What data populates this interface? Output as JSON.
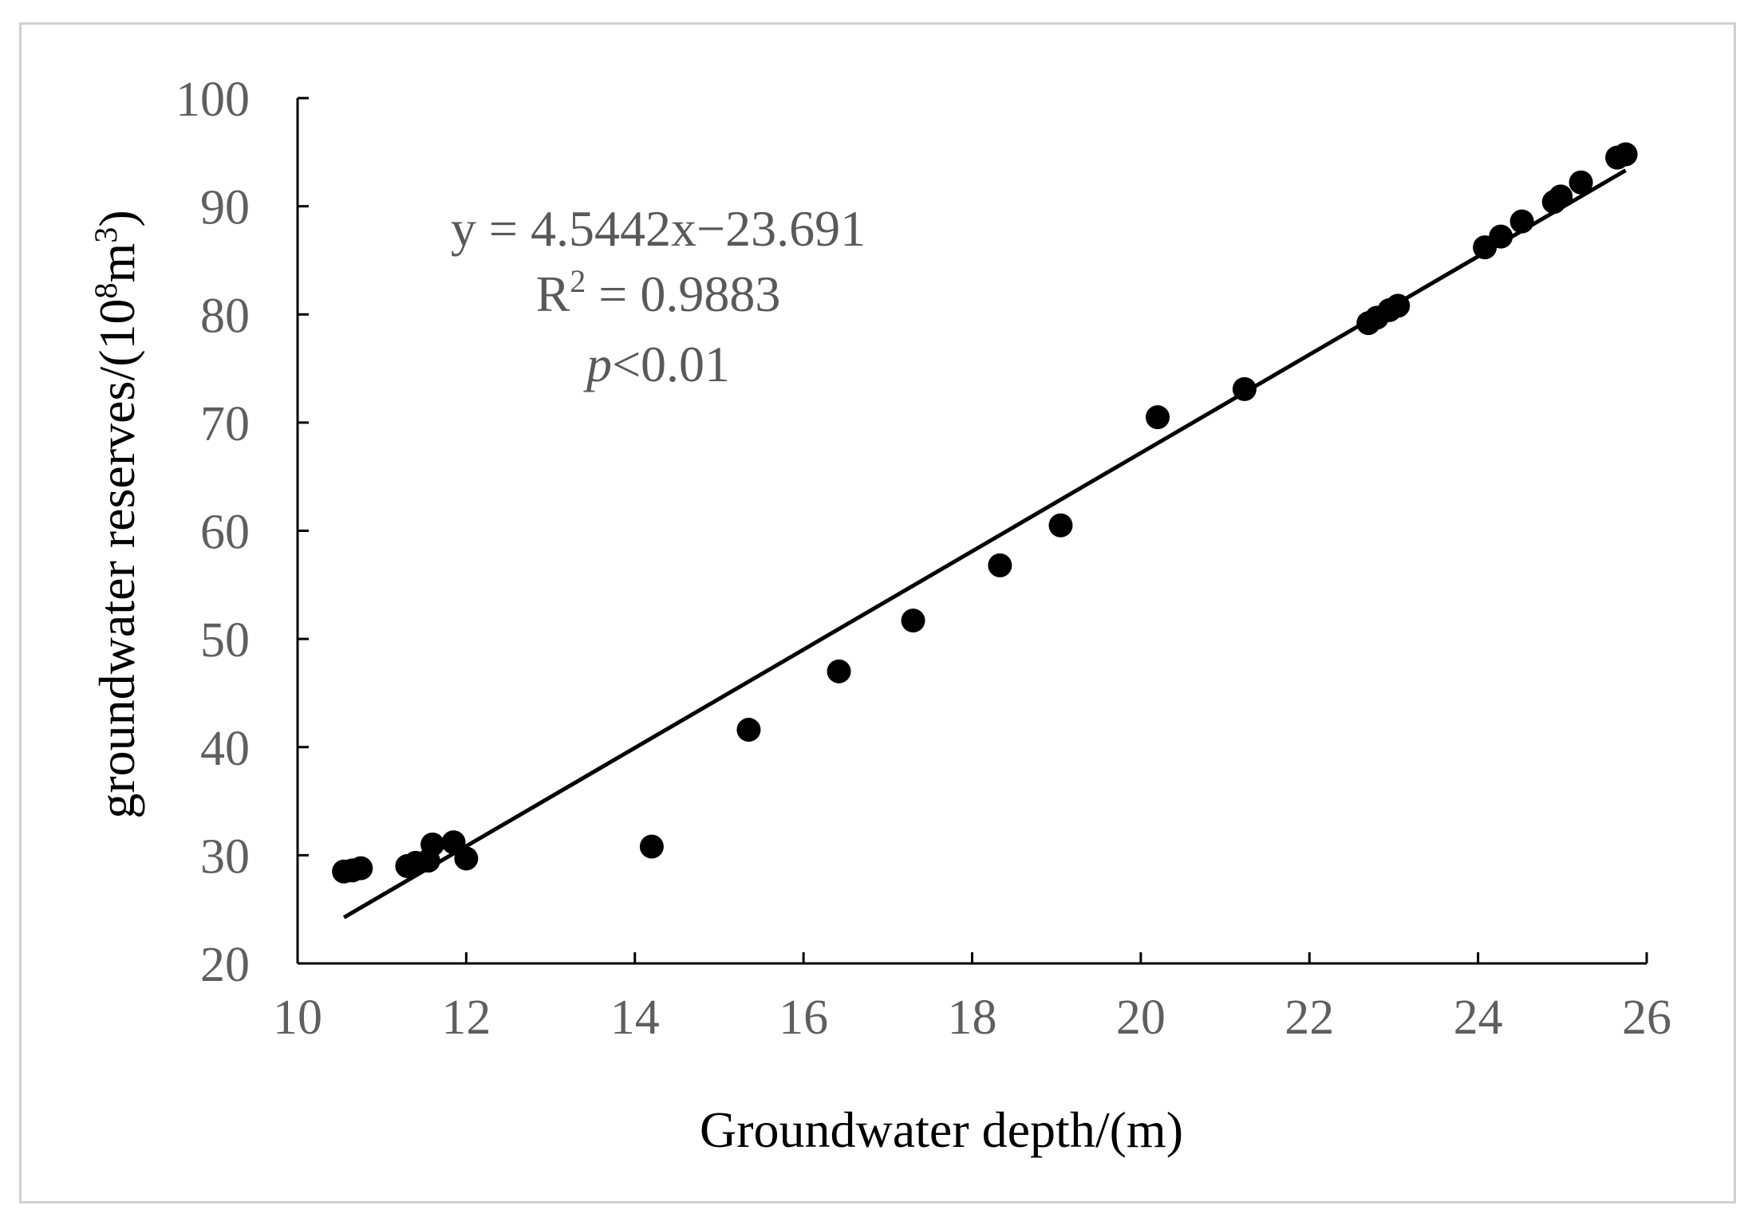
{
  "chart_data": {
    "type": "scatter",
    "xlabel": "Groundwater depth/(m)",
    "ylabel": {
      "base": "groundwater reserves/(10",
      "sup1": "8",
      "mid": "m",
      "sup2": "3",
      "end": ")"
    },
    "xlim": [
      10,
      26
    ],
    "ylim": [
      20,
      100
    ],
    "x_ticks": [
      "10",
      "12",
      "14",
      "16",
      "18",
      "20",
      "22",
      "24",
      "26"
    ],
    "y_ticks": [
      "20",
      "30",
      "40",
      "50",
      "60",
      "70",
      "80",
      "90",
      "100"
    ],
    "grid": false,
    "legend": "none",
    "series": [
      {
        "x": [
          10.55,
          10.65,
          10.75,
          11.3,
          11.4,
          11.55,
          11.6,
          11.85,
          12.0,
          14.2,
          15.35,
          16.42,
          17.3,
          18.33,
          19.05,
          20.2,
          21.23,
          22.7,
          22.8,
          22.95,
          23.05,
          24.08,
          24.27,
          24.52,
          24.9,
          24.98,
          25.22,
          25.65,
          25.75
        ],
        "y": [
          28.5,
          28.6,
          28.8,
          29.0,
          29.3,
          29.5,
          31.0,
          31.2,
          29.7,
          30.8,
          41.6,
          47.0,
          51.7,
          56.8,
          60.5,
          70.5,
          73.1,
          79.2,
          79.7,
          80.4,
          80.8,
          86.2,
          87.2,
          88.6,
          90.4,
          90.9,
          92.2,
          94.5,
          94.8
        ]
      }
    ],
    "trendline": {
      "slope": 4.5442,
      "intercept": -23.691,
      "x_range": [
        10.55,
        25.75
      ]
    },
    "annotation": {
      "equation": "y = 4.5442x−23.691",
      "r2_prefix": "R",
      "r2_sup": "2",
      "r2_value": " = 0.9883",
      "p_symbol": "p",
      "p_value": "<0.01"
    },
    "colors": {
      "points": "#000000",
      "line": "#000000",
      "axis": "#000000",
      "tick_labels": "#5f5f5f",
      "annotation": "#595959"
    }
  }
}
